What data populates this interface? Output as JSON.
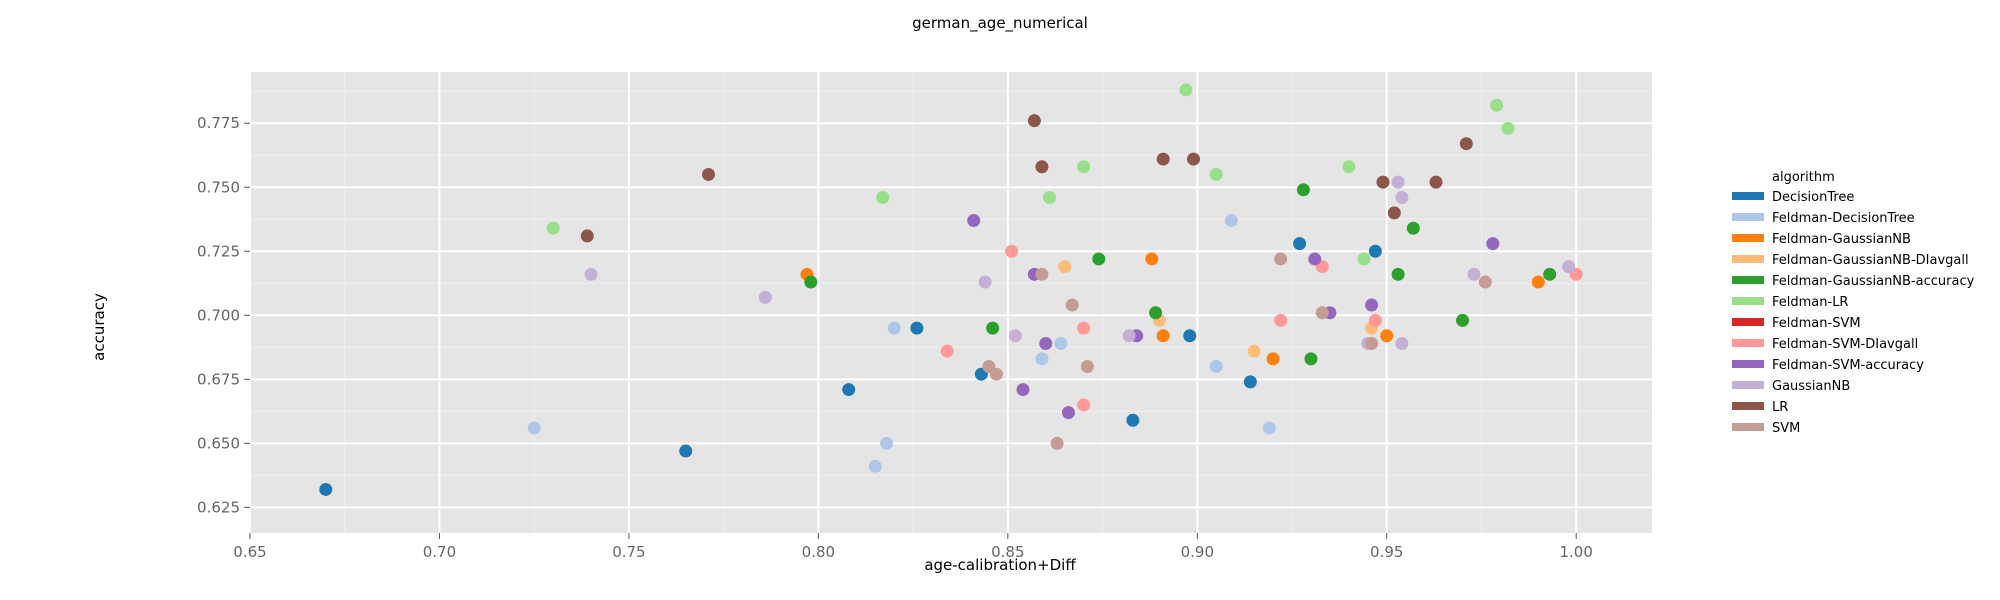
{
  "chart_data": {
    "type": "scatter",
    "title": "german_age_numerical",
    "xlabel": "age-calibration+Diff",
    "ylabel": "accuracy",
    "xlim": [
      0.65,
      1.02
    ],
    "ylim": [
      0.615,
      0.795
    ],
    "xticks": [
      "0.65",
      "0.70",
      "0.75",
      "0.80",
      "0.85",
      "0.90",
      "0.95",
      "1.00"
    ],
    "yticks": [
      "0.625",
      "0.650",
      "0.675",
      "0.700",
      "0.725",
      "0.750",
      "0.775"
    ],
    "grid": true,
    "legend_position": "right",
    "legend_title": "algorithm",
    "series": [
      {
        "name": "DecisionTree",
        "color": "#1f77b4",
        "points": [
          [
            0.67,
            0.632
          ],
          [
            0.765,
            0.647
          ],
          [
            0.808,
            0.671
          ],
          [
            0.826,
            0.695
          ],
          [
            0.843,
            0.677
          ],
          [
            0.883,
            0.659
          ],
          [
            0.898,
            0.692
          ],
          [
            0.914,
            0.674
          ],
          [
            0.927,
            0.728
          ],
          [
            0.947,
            0.725
          ]
        ]
      },
      {
        "name": "Feldman-DecisionTree",
        "color": "#aec7e8",
        "points": [
          [
            0.725,
            0.656
          ],
          [
            0.815,
            0.641
          ],
          [
            0.818,
            0.65
          ],
          [
            0.82,
            0.695
          ],
          [
            0.859,
            0.683
          ],
          [
            0.864,
            0.689
          ],
          [
            0.905,
            0.68
          ],
          [
            0.909,
            0.737
          ],
          [
            0.919,
            0.656
          ]
        ]
      },
      {
        "name": "Feldman-GaussianNB",
        "color": "#ff7f0e",
        "points": [
          [
            0.797,
            0.716
          ],
          [
            0.888,
            0.722
          ],
          [
            0.891,
            0.692
          ],
          [
            0.92,
            0.683
          ],
          [
            0.95,
            0.692
          ],
          [
            0.99,
            0.713
          ]
        ]
      },
      {
        "name": "Feldman-GaussianNB-DIavgall",
        "color": "#ffbb78",
        "points": [
          [
            0.865,
            0.719
          ],
          [
            0.89,
            0.698
          ],
          [
            0.915,
            0.686
          ],
          [
            0.946,
            0.695
          ]
        ]
      },
      {
        "name": "Feldman-GaussianNB-accuracy",
        "color": "#2ca02c",
        "points": [
          [
            0.798,
            0.713
          ],
          [
            0.846,
            0.695
          ],
          [
            0.874,
            0.722
          ],
          [
            0.889,
            0.701
          ],
          [
            0.928,
            0.749
          ],
          [
            0.93,
            0.683
          ],
          [
            0.953,
            0.716
          ],
          [
            0.957,
            0.734
          ],
          [
            0.97,
            0.698
          ],
          [
            0.993,
            0.716
          ]
        ]
      },
      {
        "name": "Feldman-LR",
        "color": "#98df8a",
        "points": [
          [
            0.73,
            0.734
          ],
          [
            0.817,
            0.746
          ],
          [
            0.861,
            0.746
          ],
          [
            0.87,
            0.758
          ],
          [
            0.897,
            0.788
          ],
          [
            0.905,
            0.755
          ],
          [
            0.94,
            0.758
          ],
          [
            0.944,
            0.722
          ],
          [
            0.979,
            0.782
          ],
          [
            0.982,
            0.773
          ]
        ]
      },
      {
        "name": "Feldman-SVM",
        "color": "#d62728",
        "points": []
      },
      {
        "name": "Feldman-SVM-DIavgall",
        "color": "#ff9896",
        "points": [
          [
            0.834,
            0.686
          ],
          [
            0.851,
            0.725
          ],
          [
            0.87,
            0.665
          ],
          [
            0.87,
            0.695
          ],
          [
            0.922,
            0.698
          ],
          [
            0.933,
            0.719
          ],
          [
            0.947,
            0.698
          ],
          [
            1.0,
            0.716
          ]
        ]
      },
      {
        "name": "Feldman-SVM-accuracy",
        "color": "#9467bd",
        "points": [
          [
            0.841,
            0.737
          ],
          [
            0.854,
            0.671
          ],
          [
            0.857,
            0.716
          ],
          [
            0.86,
            0.689
          ],
          [
            0.866,
            0.662
          ],
          [
            0.884,
            0.692
          ],
          [
            0.931,
            0.722
          ],
          [
            0.935,
            0.701
          ],
          [
            0.946,
            0.704
          ],
          [
            0.978,
            0.728
          ]
        ]
      },
      {
        "name": "GaussianNB",
        "color": "#c5b0d5",
        "points": [
          [
            0.74,
            0.716
          ],
          [
            0.786,
            0.707
          ],
          [
            0.844,
            0.713
          ],
          [
            0.852,
            0.692
          ],
          [
            0.882,
            0.692
          ],
          [
            0.945,
            0.689
          ],
          [
            0.953,
            0.752
          ],
          [
            0.954,
            0.746
          ],
          [
            0.954,
            0.689
          ],
          [
            0.973,
            0.716
          ],
          [
            0.998,
            0.719
          ]
        ]
      },
      {
        "name": "LR",
        "color": "#8c564b",
        "points": [
          [
            0.739,
            0.731
          ],
          [
            0.771,
            0.755
          ],
          [
            0.857,
            0.776
          ],
          [
            0.859,
            0.758
          ],
          [
            0.891,
            0.761
          ],
          [
            0.899,
            0.761
          ],
          [
            0.949,
            0.752
          ],
          [
            0.952,
            0.74
          ],
          [
            0.963,
            0.752
          ],
          [
            0.971,
            0.767
          ]
        ]
      },
      {
        "name": "SVM",
        "color": "#c49c94",
        "points": [
          [
            0.845,
            0.68
          ],
          [
            0.847,
            0.677
          ],
          [
            0.859,
            0.716
          ],
          [
            0.863,
            0.65
          ],
          [
            0.867,
            0.704
          ],
          [
            0.871,
            0.68
          ],
          [
            0.922,
            0.722
          ],
          [
            0.933,
            0.701
          ],
          [
            0.946,
            0.689
          ],
          [
            0.976,
            0.713
          ]
        ]
      }
    ]
  }
}
